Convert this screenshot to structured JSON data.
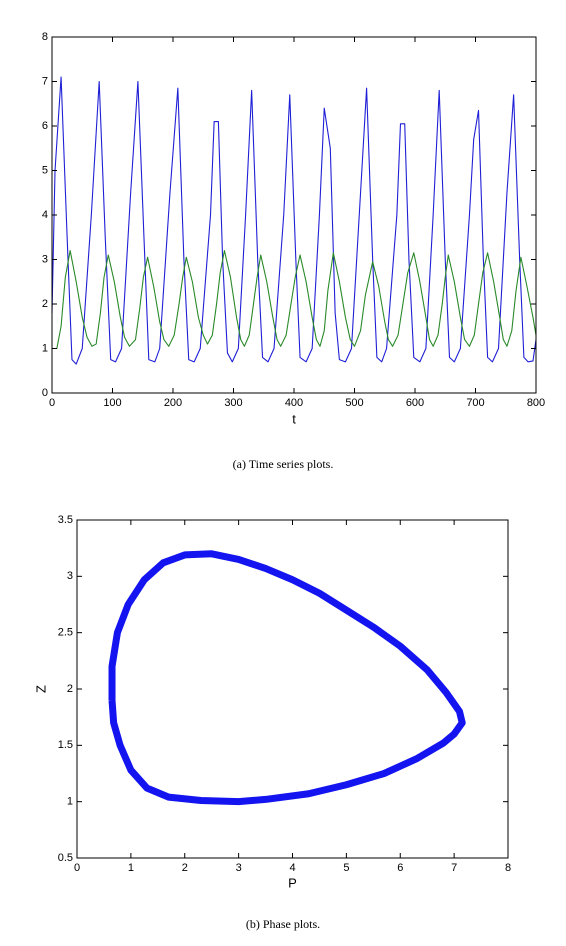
{
  "chart_data": [
    {
      "type": "line",
      "caption": "(a)  Time series plots.",
      "xlabel": "t",
      "xlim": [
        0,
        800
      ],
      "xticks": [
        0,
        100,
        200,
        300,
        400,
        500,
        600,
        700,
        800
      ],
      "ylim": [
        0,
        8
      ],
      "yticks": [
        0,
        1,
        2,
        3,
        4,
        5,
        6,
        7,
        8
      ],
      "series": [
        {
          "color": "#1f1fd6",
          "x": [
            0,
            5,
            15,
            25,
            33,
            40,
            50,
            65,
            78,
            88,
            97,
            105,
            115,
            130,
            142,
            152,
            160,
            170,
            178,
            195,
            208,
            218,
            226,
            235,
            245,
            262,
            268,
            275,
            282,
            290,
            298,
            308,
            320,
            330,
            340,
            348,
            357,
            367,
            383,
            393,
            403,
            410,
            420,
            430,
            442,
            450,
            460,
            468,
            475,
            485,
            495,
            510,
            520,
            530,
            537,
            545,
            553,
            570,
            576,
            583,
            590,
            598,
            608,
            618,
            630,
            640,
            650,
            657,
            665,
            675,
            690,
            697,
            705,
            713,
            720,
            728,
            738,
            752,
            763,
            773,
            780,
            787,
            795,
            800
          ],
          "values": [
            1.8,
            5,
            7.1,
            3.5,
            0.75,
            0.65,
            1.0,
            4,
            7.0,
            3.5,
            0.75,
            0.7,
            1.0,
            4.5,
            7.0,
            3.5,
            0.75,
            0.7,
            1.0,
            4.5,
            6.85,
            3,
            0.75,
            0.7,
            1.0,
            4,
            6.1,
            6.1,
            3,
            0.9,
            0.7,
            1.0,
            4,
            6.8,
            3,
            0.8,
            0.7,
            1.0,
            4,
            6.7,
            3,
            0.8,
            0.7,
            1.0,
            4,
            6.4,
            5.5,
            1.8,
            0.75,
            0.7,
            1.0,
            4.5,
            6.85,
            3,
            0.8,
            0.7,
            1.0,
            4,
            6.05,
            6.05,
            3,
            0.8,
            0.7,
            1.0,
            4,
            6.8,
            3,
            0.8,
            0.7,
            1.0,
            4,
            5.7,
            6.35,
            3,
            0.8,
            0.7,
            1.0,
            4.5,
            6.7,
            3,
            0.8,
            0.7,
            0.72,
            1.2
          ]
        },
        {
          "color": "#2a8a2a",
          "x": [
            0,
            8,
            15,
            22,
            30,
            40,
            50,
            58,
            66,
            73,
            80,
            86,
            93,
            103,
            113,
            120,
            128,
            138,
            145,
            151,
            158,
            168,
            178,
            185,
            193,
            202,
            210,
            216,
            222,
            232,
            242,
            250,
            257,
            265,
            272,
            278,
            285,
            295,
            305,
            312,
            318,
            326,
            333,
            339,
            345,
            355,
            365,
            372,
            378,
            387,
            395,
            402,
            410,
            420,
            430,
            437,
            443,
            450,
            456,
            465,
            475,
            485,
            493,
            500,
            510,
            518,
            530,
            540,
            550,
            556,
            563,
            572,
            580,
            588,
            598,
            608,
            618,
            624,
            630,
            638,
            645,
            650,
            655,
            665,
            675,
            682,
            690,
            698,
            705,
            712,
            720,
            730,
            740,
            746,
            752,
            760,
            767,
            775,
            785,
            795,
            800
          ],
          "values": [
            1.0,
            1.0,
            1.5,
            2.6,
            3.2,
            2.5,
            1.7,
            1.25,
            1.05,
            1.1,
            1.8,
            2.6,
            3.1,
            2.5,
            1.7,
            1.25,
            1.05,
            1.2,
            1.9,
            2.6,
            3.05,
            2.4,
            1.6,
            1.2,
            1.05,
            1.3,
            2.0,
            2.6,
            3.05,
            2.5,
            1.7,
            1.3,
            1.1,
            1.3,
            2.0,
            2.7,
            3.2,
            2.6,
            1.7,
            1.2,
            1.05,
            1.3,
            2.0,
            2.6,
            3.1,
            2.5,
            1.7,
            1.2,
            1.05,
            1.3,
            2.0,
            2.6,
            3.1,
            2.5,
            1.7,
            1.2,
            1.05,
            1.4,
            2.3,
            3.15,
            2.5,
            1.7,
            1.2,
            1.05,
            1.4,
            2.2,
            2.95,
            2.4,
            1.6,
            1.2,
            1.05,
            1.3,
            2.0,
            2.7,
            3.15,
            2.5,
            1.7,
            1.2,
            1.05,
            1.3,
            2.0,
            2.6,
            3.1,
            2.5,
            1.7,
            1.2,
            1.05,
            1.3,
            2.0,
            2.7,
            3.15,
            2.5,
            1.7,
            1.2,
            1.05,
            1.4,
            2.3,
            3.05,
            2.4,
            1.7,
            1.3
          ]
        }
      ]
    },
    {
      "type": "line",
      "caption": "(b)  Phase plots.",
      "xlabel": "P",
      "ylabel": "Z",
      "xlim": [
        0,
        8
      ],
      "xticks": [
        0,
        1,
        2,
        3,
        4,
        5,
        6,
        7,
        8
      ],
      "ylim": [
        0.5,
        3.5
      ],
      "yticks": [
        0.5,
        1,
        1.5,
        2,
        2.5,
        3,
        3.5
      ],
      "series": [
        {
          "color": "#1414f0",
          "x": [
            0.65,
            0.65,
            0.75,
            0.95,
            1.25,
            1.6,
            2.0,
            2.5,
            3.0,
            3.5,
            4.0,
            4.5,
            5.0,
            5.5,
            6.0,
            6.5,
            6.85,
            7.1,
            7.15,
            7.0,
            6.8,
            6.3,
            5.7,
            5.0,
            4.3,
            3.5,
            3.0,
            2.3,
            1.7,
            1.3,
            1.0,
            0.8,
            0.68,
            0.65
          ],
          "values": [
            1.9,
            2.2,
            2.5,
            2.75,
            2.97,
            3.12,
            3.19,
            3.2,
            3.15,
            3.07,
            2.97,
            2.85,
            2.7,
            2.55,
            2.38,
            2.17,
            1.97,
            1.8,
            1.7,
            1.6,
            1.52,
            1.38,
            1.25,
            1.15,
            1.07,
            1.02,
            1.0,
            1.01,
            1.04,
            1.12,
            1.28,
            1.5,
            1.7,
            1.9
          ]
        }
      ]
    }
  ]
}
